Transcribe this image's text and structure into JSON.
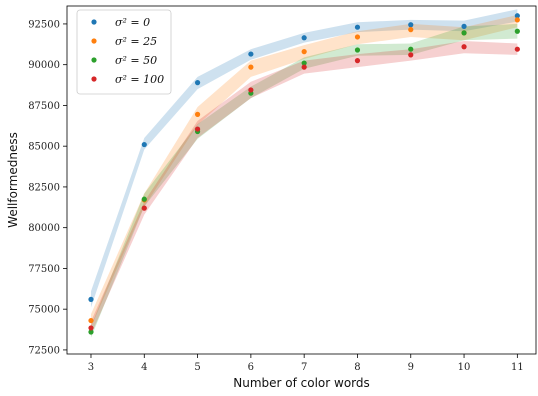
{
  "chart_data": {
    "type": "scatter",
    "xlabel": "Number of color words",
    "ylabel": "Wellformedness",
    "x": [
      3,
      4,
      5,
      6,
      7,
      8,
      9,
      10,
      11
    ],
    "xlim": [
      2.55,
      11.35
    ],
    "ylim": [
      72250,
      93600
    ],
    "yticks": [
      72500,
      75000,
      77500,
      80000,
      82500,
      85000,
      87500,
      90000,
      92500
    ],
    "xticks": [
      3,
      4,
      5,
      6,
      7,
      8,
      9,
      10,
      11
    ],
    "legend_position": "top-left",
    "grid": false,
    "series": [
      {
        "name": "σ² = 0",
        "color": "#1f77b4",
        "values": [
          75600,
          85100,
          88900,
          90650,
          91650,
          92300,
          92450,
          92350,
          93000
        ],
        "band_low": [
          75100,
          84800,
          88500,
          90300,
          91350,
          92000,
          92150,
          92050,
          92650
        ],
        "band_high": [
          76100,
          85500,
          89250,
          90950,
          91950,
          92600,
          92750,
          92700,
          93400
        ]
      },
      {
        "name": "σ² = 25",
        "color": "#ff7f0e",
        "values": [
          74300,
          81700,
          86950,
          89850,
          90800,
          91700,
          92150,
          91950,
          92750
        ],
        "band_low": [
          73900,
          81300,
          86300,
          89250,
          90350,
          91250,
          91700,
          91500,
          92300
        ],
        "band_high": [
          74700,
          82100,
          87400,
          90250,
          91200,
          92050,
          92500,
          92300,
          93050
        ]
      },
      {
        "name": "σ² = 50",
        "color": "#2ca02c",
        "values": [
          73600,
          81750,
          85900,
          88250,
          90100,
          90900,
          90950,
          91950,
          92050
        ],
        "band_low": [
          73250,
          81300,
          85450,
          87950,
          89750,
          90550,
          90600,
          91500,
          91600
        ],
        "band_high": [
          73950,
          82100,
          86350,
          88650,
          90450,
          91250,
          91300,
          92350,
          92500
        ]
      },
      {
        "name": "σ² = 100",
        "color": "#d62728",
        "values": [
          73850,
          81200,
          86050,
          88450,
          89850,
          90250,
          90600,
          91100,
          90950
        ],
        "band_low": [
          73450,
          80800,
          85500,
          87950,
          89450,
          89850,
          90250,
          90700,
          90600
        ],
        "band_high": [
          74250,
          81600,
          86550,
          88950,
          90250,
          90650,
          90950,
          91450,
          91300
        ]
      }
    ]
  }
}
